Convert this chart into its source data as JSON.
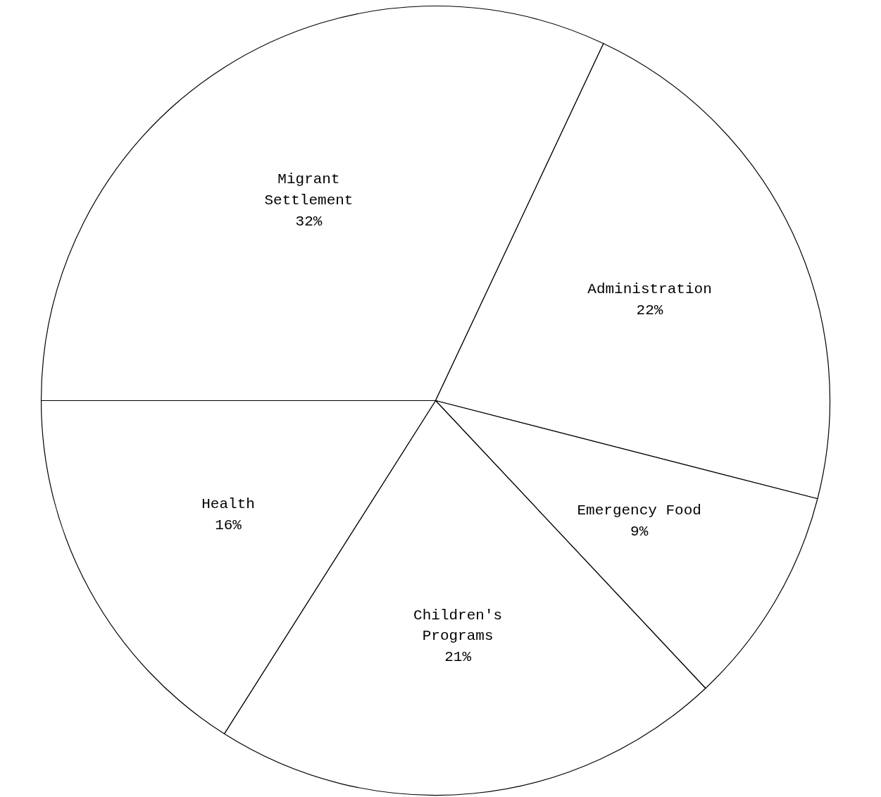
{
  "chart_data": {
    "type": "pie",
    "categories": [
      "Migrant Settlement",
      "Administration",
      "Emergency Food",
      "Children's Programs",
      "Health"
    ],
    "values": [
      32,
      22,
      9,
      21,
      16
    ],
    "value_labels": [
      "32%",
      "22%",
      "9%",
      "21%",
      "16%"
    ],
    "colors": [
      "#ffffff",
      "#ffffff",
      "#ffffff",
      "#ffffff",
      "#ffffff"
    ]
  }
}
